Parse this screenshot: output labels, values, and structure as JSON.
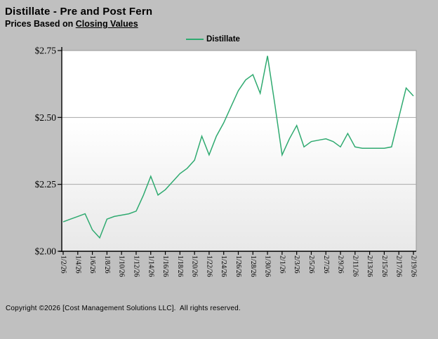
{
  "window": {
    "background": "#C0C0C0"
  },
  "header": {
    "title": "Distillate - Pre and Post Fern",
    "subtitle_prefix": "Prices Based on ",
    "subtitle_underlined": "Closing Values"
  },
  "legend": {
    "series_label": "Distillate",
    "marker_color": "#2FAA70",
    "position": "top-center"
  },
  "chart_data": {
    "type": "line",
    "title": "Distillate - Pre and Post Fern",
    "subtitle": "Prices Based on Closing Values",
    "xlabel": "",
    "ylabel": "",
    "ylim": [
      2.0,
      2.75
    ],
    "grid": "horizontal",
    "y_tick_labels": [
      "$2.00",
      "$2.25",
      "$2.50",
      "$2.75"
    ],
    "y_tick_values": [
      2.0,
      2.25,
      2.5,
      2.75
    ],
    "gridline_values": [
      2.25,
      2.5
    ],
    "x_tick_labels": [
      "1/2/26",
      "1/4/26",
      "1/6/26",
      "1/8/26",
      "1/10/26",
      "1/12/26",
      "1/14/26",
      "1/16/26",
      "1/18/26",
      "1/20/26",
      "1/22/26",
      "1/24/26",
      "1/26/26",
      "1/28/26",
      "1/30/26",
      "2/1/26",
      "2/3/26",
      "2/5/26",
      "2/7/26",
      "2/9/26",
      "2/11/26",
      "2/13/26",
      "2/15/26",
      "2/17/26",
      "2/19/26"
    ],
    "series": [
      {
        "name": "Distillate",
        "color": "#2FAA70",
        "x": [
          "1/2/26",
          "1/3/26",
          "1/4/26",
          "1/5/26",
          "1/6/26",
          "1/7/26",
          "1/8/26",
          "1/9/26",
          "1/10/26",
          "1/11/26",
          "1/12/26",
          "1/13/26",
          "1/14/26",
          "1/15/26",
          "1/16/26",
          "1/17/26",
          "1/18/26",
          "1/19/26",
          "1/20/26",
          "1/21/26",
          "1/22/26",
          "1/23/26",
          "1/24/26",
          "1/25/26",
          "1/26/26",
          "1/27/26",
          "1/28/26",
          "1/29/26",
          "1/30/26",
          "1/31/26",
          "2/1/26",
          "2/2/26",
          "2/3/26",
          "2/4/26",
          "2/5/26",
          "2/6/26",
          "2/7/26",
          "2/8/26",
          "2/9/26",
          "2/10/26",
          "2/11/26",
          "2/12/26",
          "2/13/26",
          "2/14/26",
          "2/15/26",
          "2/16/26",
          "2/17/26",
          "2/18/26",
          "2/19/26"
        ],
        "values": [
          2.11,
          2.12,
          2.13,
          2.14,
          2.08,
          2.05,
          2.12,
          2.13,
          2.135,
          2.14,
          2.15,
          2.21,
          2.28,
          2.21,
          2.23,
          2.26,
          2.29,
          2.31,
          2.34,
          2.43,
          2.36,
          2.43,
          2.48,
          2.54,
          2.6,
          2.64,
          2.66,
          2.59,
          2.73,
          2.55,
          2.36,
          2.42,
          2.47,
          2.39,
          2.41,
          2.415,
          2.42,
          2.41,
          2.39,
          2.44,
          2.39,
          2.385,
          2.385,
          2.385,
          2.385,
          2.39,
          2.5,
          2.61,
          2.58
        ]
      }
    ],
    "colors": {
      "plot_bg_top": "#FFFFFF",
      "plot_bg_bottom": "#E8E8E8",
      "grid_color": "#A8A8A8",
      "axis_color": "#000000",
      "plot_border": "#999999",
      "tick_text": "#000000"
    }
  },
  "footer": {
    "copyright": "Copyright ©2026 [Cost Management Solutions LLC].  All rights reserved."
  }
}
